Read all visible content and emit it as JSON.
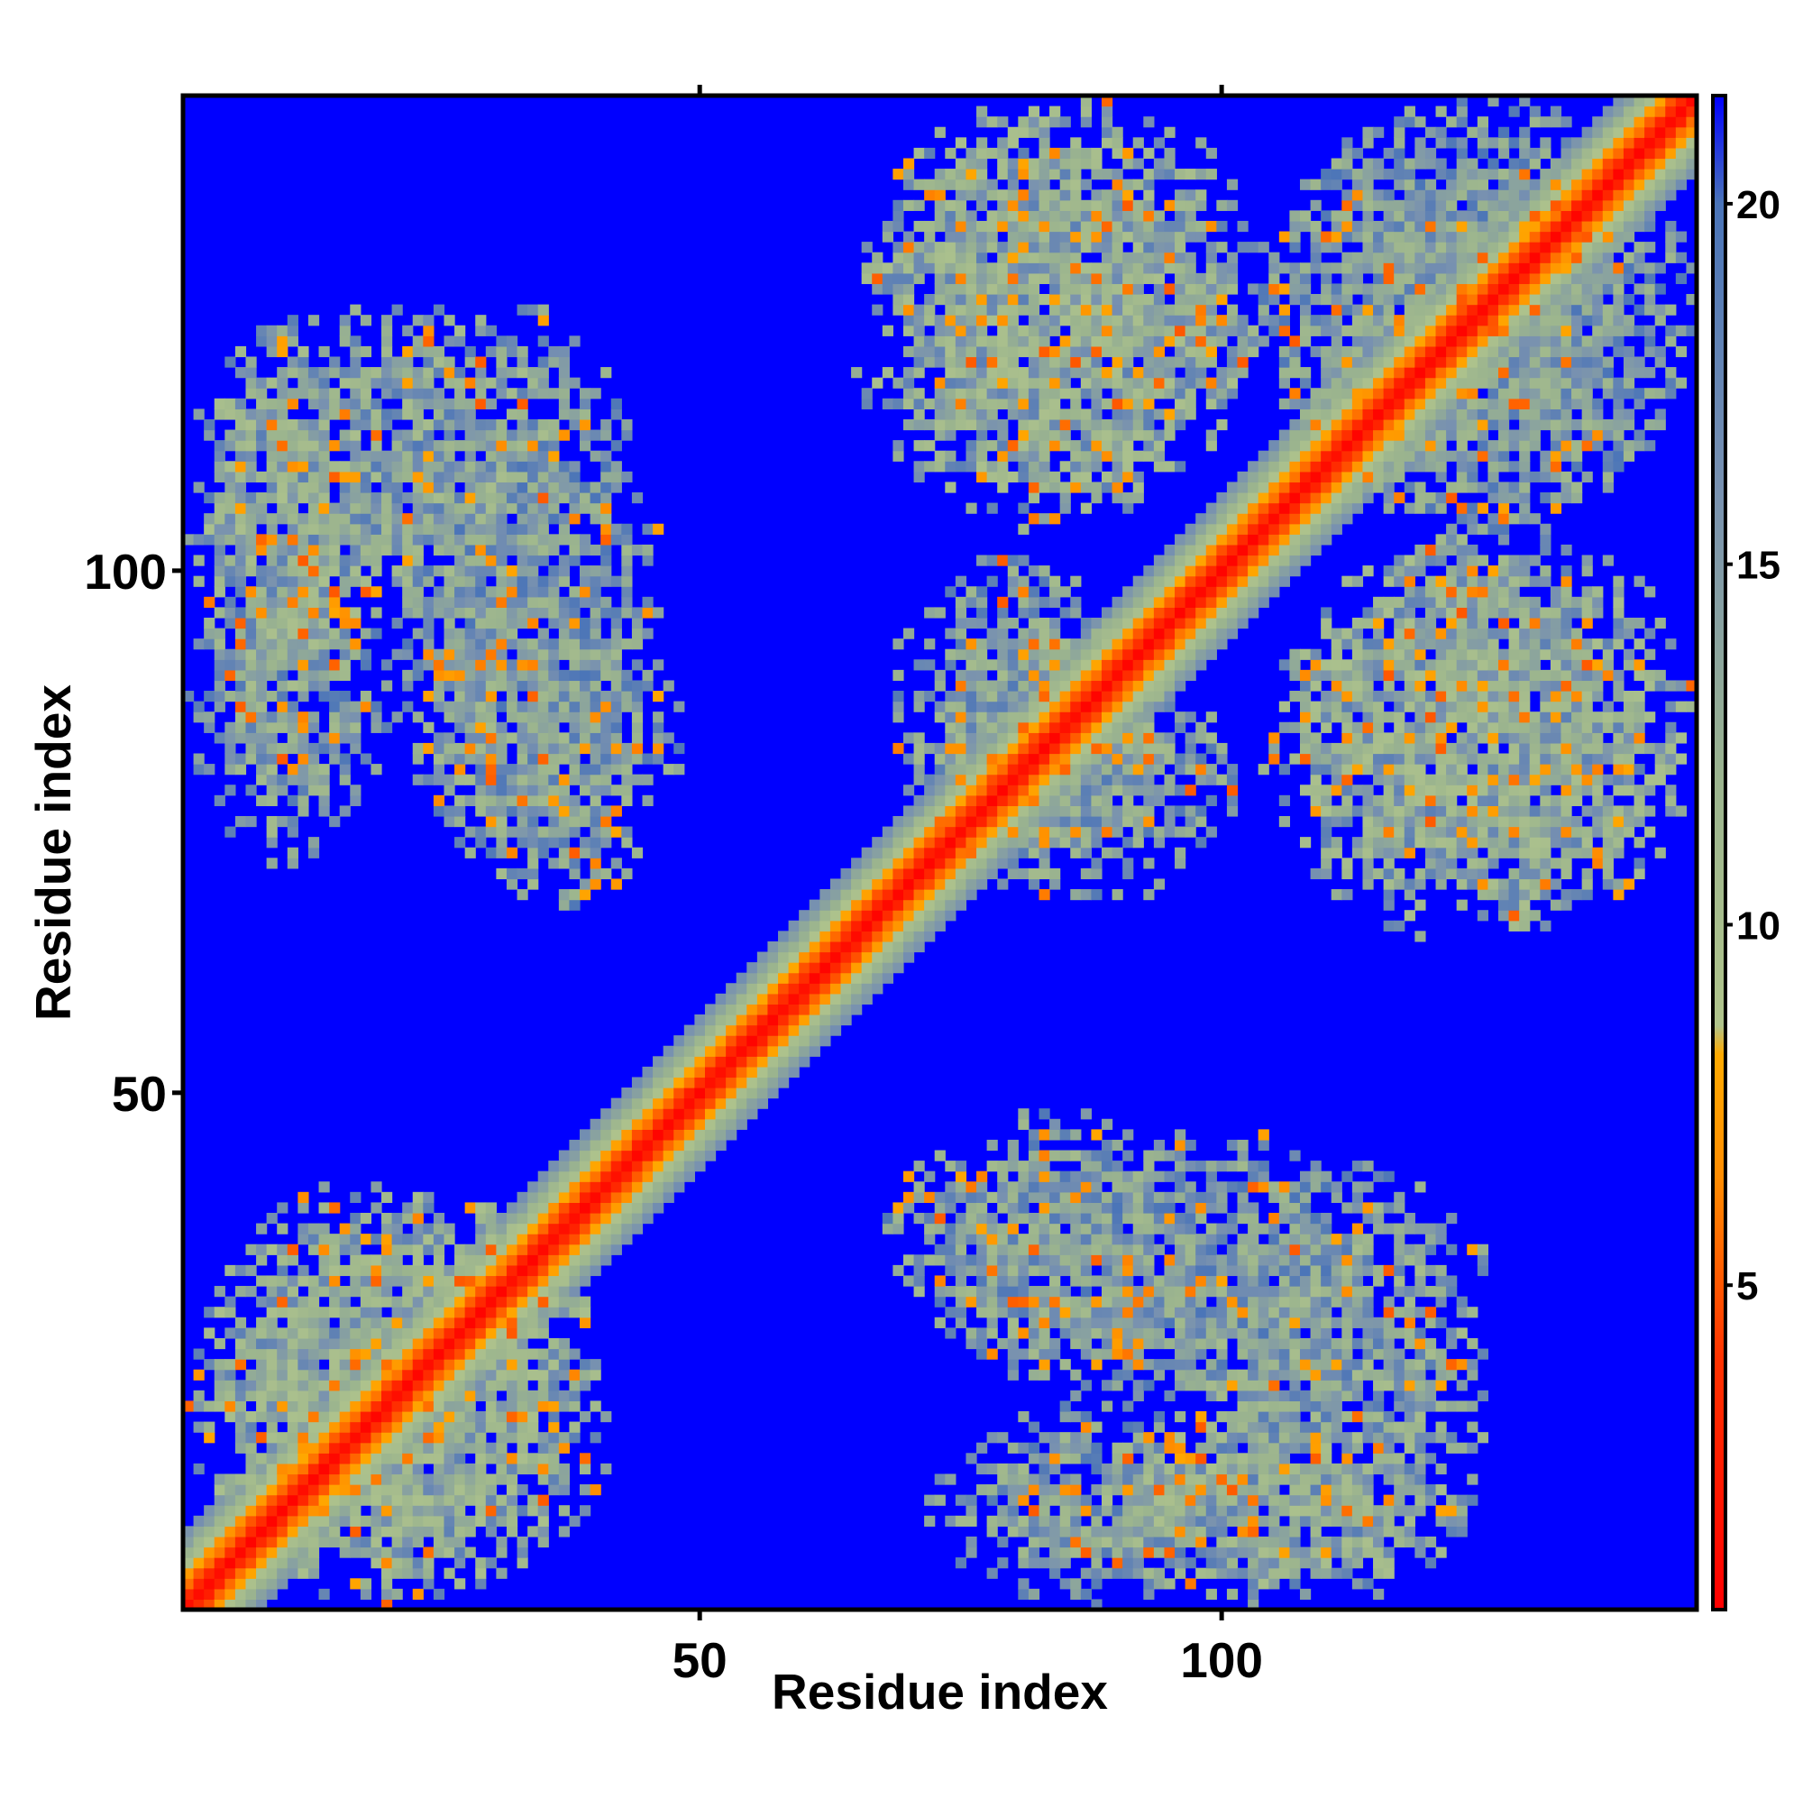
{
  "chart_data": {
    "type": "heatmap",
    "title": "",
    "xlabel": "Residue index",
    "ylabel": "Residue index",
    "n_residues": 145,
    "x_range": [
      1,
      145
    ],
    "y_range": [
      1,
      145
    ],
    "x_ticks": [
      50,
      100
    ],
    "y_ticks": [
      50,
      100
    ],
    "x_tick_labels": [
      "50",
      "100"
    ],
    "y_tick_labels": [
      "50",
      "100"
    ],
    "value_description": "pairwise residue distance map",
    "colorbar": {
      "range": [
        0.5,
        21.5
      ],
      "ticks": [
        5,
        10,
        15,
        20
      ],
      "tick_labels": [
        "5",
        "10",
        "15",
        "20"
      ],
      "stops": [
        {
          "value": 0.5,
          "color": "#ff0000"
        },
        {
          "value": 4.0,
          "color": "#ff3300"
        },
        {
          "value": 6.5,
          "color": "#ff8c00"
        },
        {
          "value": 8.2,
          "color": "#ffaa00"
        },
        {
          "value": 8.6,
          "color": "#b0c48c"
        },
        {
          "value": 12.0,
          "color": "#9bb48e"
        },
        {
          "value": 16.0,
          "color": "#7891b0"
        },
        {
          "value": 20.0,
          "color": "#4a74b8"
        },
        {
          "value": 21.5,
          "color": "#0000ff"
        }
      ]
    },
    "background_value": 21.5,
    "diagonal_band": {
      "width_residues": 7,
      "min_value": 1,
      "max_value": 16
    },
    "contact_blocks": [
      {
        "x_range": [
          1,
          18
        ],
        "y_range": [
          83,
          123
        ],
        "mean_value": 14
      },
      {
        "x_range": [
          20,
          46
        ],
        "y_range": [
          70,
          125
        ],
        "mean_value": 15.5
      },
      {
        "x_range": [
          1,
          40
        ],
        "y_range": [
          1,
          42
        ],
        "mean_value": 14
      },
      {
        "x_range": [
          64,
          103
        ],
        "y_range": [
          104,
          145
        ],
        "mean_value": 14
      },
      {
        "x_range": [
          68,
          95
        ],
        "y_range": [
          70,
          102
        ],
        "mean_value": 15
      },
      {
        "x_range": [
          106,
          145
        ],
        "y_range": [
          66,
          105
        ],
        "mean_value": 14
      },
      {
        "x_range": [
          104,
          145
        ],
        "y_range": [
          104,
          145
        ],
        "mean_value": 15.5
      },
      {
        "x_range": [
          68,
          100
        ],
        "y_range": [
          24,
          48
        ],
        "mean_value": 15
      },
      {
        "x_range": [
          95,
          126
        ],
        "y_range": [
          1,
          39
        ],
        "mean_value": 14.5
      },
      {
        "x_range": [
          72,
          105
        ],
        "y_range": [
          1,
          20
        ],
        "mean_value": 15
      }
    ],
    "grid": false,
    "legend": "colorbar-right"
  }
}
